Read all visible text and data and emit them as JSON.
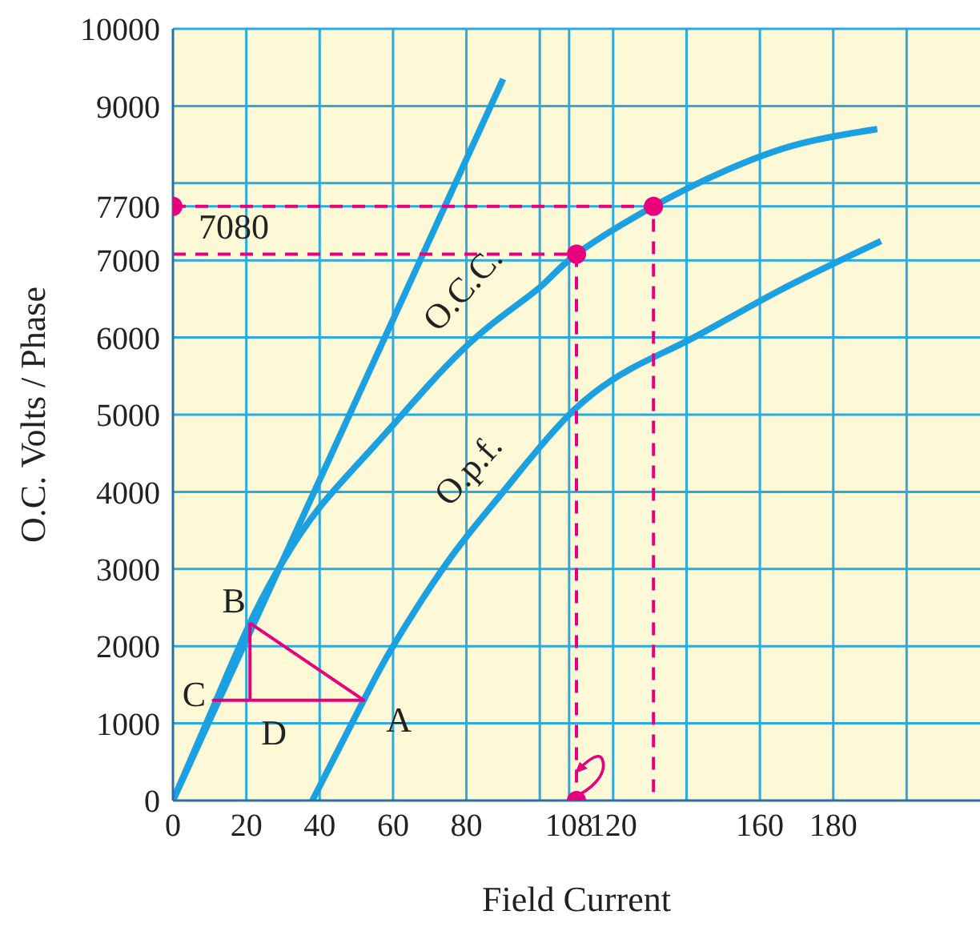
{
  "chart_data": {
    "type": "line",
    "xlabel": "Field Current",
    "ylabel": "O.C. Volts / Phase",
    "xlim": [
      0,
      220
    ],
    "ylim": [
      0,
      10000
    ],
    "xticks": [
      0,
      20,
      40,
      60,
      80,
      {
        "value": 100,
        "label": null
      },
      108,
      120,
      {
        "value": 140,
        "label": null
      },
      160,
      180,
      {
        "value": 200,
        "label": null
      }
    ],
    "yticks": [
      0,
      1000,
      2000,
      3000,
      4000,
      5000,
      6000,
      7000,
      7700,
      {
        "value": 8000,
        "label": null
      },
      9000,
      10000
    ],
    "grid": true,
    "marker": "none",
    "line_style": "solid",
    "series": [
      {
        "type": "line",
        "color": "#1ba1e2",
        "x": [
          0,
          90
        ],
        "values": [
          0,
          9350
        ]
      },
      {
        "type": "line",
        "color": "#1ba1e2",
        "x": [
          0,
          10,
          21,
          30,
          40,
          55,
          70,
          85,
          100,
          110,
          131,
          150,
          170,
          192
        ],
        "values": [
          0,
          1100,
          2300,
          3100,
          3800,
          4600,
          5400,
          6100,
          6650,
          7080,
          7700,
          8150,
          8500,
          8700
        ]
      },
      {
        "type": "line",
        "color": "#1ba1e2",
        "x": [
          38,
          52,
          60,
          75,
          90,
          108,
          125,
          142,
          165,
          193
        ],
        "values": [
          0,
          1300,
          2000,
          3100,
          4000,
          5000,
          5600,
          6000,
          6600,
          7250
        ]
      },
      {
        "type": "line",
        "color": "#e6007e",
        "x": [
          21,
          21,
          52,
          11,
          21
        ],
        "values": [
          2300,
          1300,
          1300,
          1300,
          1300
        ]
      },
      {
        "type": "line",
        "color": "#e6007e",
        "x": [
          52,
          21
        ],
        "values": [
          1300,
          2300
        ]
      },
      {
        "type": "line",
        "color": "#e6007e",
        "line_style": "dashed",
        "x": [
          0,
          131,
          131
        ],
        "values": [
          7700,
          7700,
          0
        ]
      },
      {
        "type": "line",
        "color": "#e6007e",
        "line_style": "dashed",
        "x": [
          0,
          110,
          110
        ],
        "values": [
          7080,
          7080,
          0
        ]
      },
      {
        "type": "scatter",
        "color": "#e6007e",
        "marker": "circle",
        "x": [
          0,
          131,
          110,
          110
        ],
        "values": [
          7700,
          7700,
          7080,
          0
        ]
      }
    ],
    "annotations": [
      {
        "text": "7080",
        "x": 0,
        "y": 7080
      },
      {
        "text": "O.C.C.",
        "x": 85,
        "y": 6100
      },
      {
        "text": "O.p.f.",
        "x": 90,
        "y": 4000
      },
      {
        "text": "B",
        "x": 21,
        "y": 2300
      },
      {
        "text": "C",
        "x": 11,
        "y": 1300
      },
      {
        "text": "D",
        "x": 21,
        "y": 1300
      },
      {
        "text": "A",
        "x": 52,
        "y": 1300
      }
    ]
  }
}
